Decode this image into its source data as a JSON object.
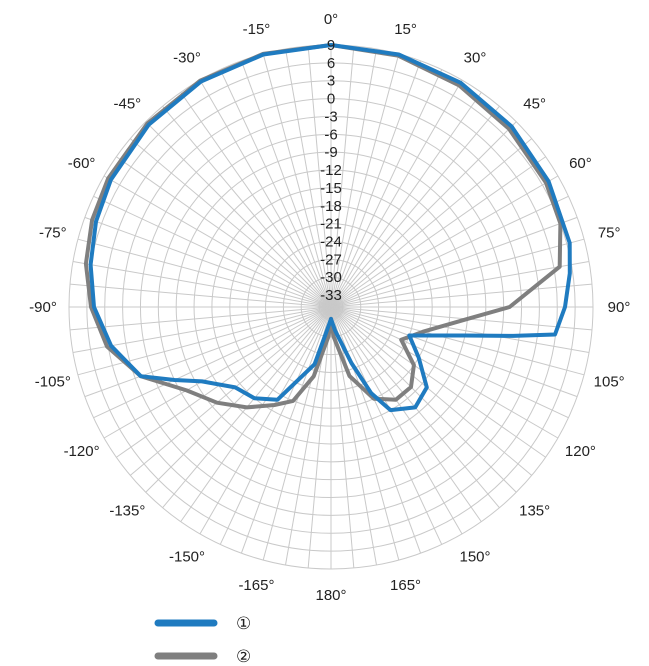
{
  "chart_data": {
    "type": "polar-line",
    "title": "",
    "angle_unit": "°",
    "angle_ticks": [
      "0°",
      "15°",
      "30°",
      "45°",
      "60°",
      "75°",
      "90°",
      "105°",
      "120°",
      "135°",
      "150°",
      "165°",
      "180°",
      "-165°",
      "-150°",
      "-135°",
      "-120°",
      "-105°",
      "-90°",
      "-75°",
      "-60°",
      "-45°",
      "-30°",
      "-15°"
    ],
    "angle_values": [
      0,
      15,
      30,
      45,
      60,
      75,
      90,
      105,
      120,
      135,
      150,
      165,
      180,
      -165,
      -150,
      -135,
      -120,
      -105,
      -90,
      -75,
      -60,
      -45,
      -30,
      -15
    ],
    "radial_ticks": [
      "9",
      "6",
      "3",
      "0",
      "-3",
      "-6",
      "-9",
      "-12",
      "-15",
      "-18",
      "-21",
      "-24",
      "-27",
      "-30",
      "-33"
    ],
    "radial_values": [
      9,
      6,
      3,
      0,
      -3,
      -6,
      -9,
      -12,
      -15,
      -18,
      -21,
      -24,
      -27,
      -30,
      -33
    ],
    "rlim": [
      -35,
      9
    ],
    "grid": true,
    "legend_position": "bottom-left",
    "series": [
      {
        "name": "①",
        "color": "#1f7bc0",
        "points": [
          [
            0,
            9
          ],
          [
            15,
            8.9
          ],
          [
            30,
            8.5
          ],
          [
            45,
            7.9
          ],
          [
            60,
            7.2
          ],
          [
            75,
            6.5
          ],
          [
            82,
            5.5
          ],
          [
            90,
            4.3
          ],
          [
            97,
            2.9
          ],
          [
            99,
            -4
          ],
          [
            102,
            -12
          ],
          [
            110,
            -21
          ],
          [
            120,
            -18
          ],
          [
            130,
            -14
          ],
          [
            140,
            -13
          ],
          [
            150,
            -15
          ],
          [
            155,
            -19
          ],
          [
            160,
            -25
          ],
          [
            170,
            -31
          ],
          [
            180,
            -33
          ],
          [
            -170,
            -31
          ],
          [
            -164,
            -25
          ],
          [
            -150,
            -17
          ],
          [
            -140,
            -15
          ],
          [
            -130,
            -14
          ],
          [
            -120,
            -10
          ],
          [
            -115,
            -6
          ],
          [
            -110,
            -1
          ],
          [
            -100,
            2.5
          ],
          [
            -90,
            4.8
          ],
          [
            -80,
            6.0
          ],
          [
            -70,
            7.0
          ],
          [
            -60,
            7.7
          ],
          [
            -45,
            8.3
          ],
          [
            -30,
            8.7
          ],
          [
            -15,
            8.9
          ],
          [
            0,
            9
          ]
        ]
      },
      {
        "name": "②",
        "color": "#7f7f7f",
        "points": [
          [
            0,
            9
          ],
          [
            15,
            8.7
          ],
          [
            30,
            8.0
          ],
          [
            45,
            7.3
          ],
          [
            60,
            6.7
          ],
          [
            70,
            6.0
          ],
          [
            80,
            4.0
          ],
          [
            90,
            -5
          ],
          [
            95,
            -12
          ],
          [
            105,
            -19
          ],
          [
            115,
            -22
          ],
          [
            125,
            -18
          ],
          [
            135,
            -16
          ],
          [
            145,
            -16
          ],
          [
            155,
            -18
          ],
          [
            165,
            -23
          ],
          [
            175,
            -30
          ],
          [
            180,
            -33
          ],
          [
            -175,
            -30
          ],
          [
            -166,
            -23
          ],
          [
            -158,
            -18
          ],
          [
            -150,
            -16
          ],
          [
            -140,
            -13
          ],
          [
            -130,
            -10
          ],
          [
            -120,
            -7
          ],
          [
            -110,
            -1
          ],
          [
            -100,
            3.2
          ],
          [
            -90,
            5.3
          ],
          [
            -80,
            6.8
          ],
          [
            -70,
            7.7
          ],
          [
            -60,
            8.2
          ],
          [
            -45,
            8.6
          ],
          [
            -30,
            8.9
          ],
          [
            -15,
            9.0
          ],
          [
            0,
            9
          ]
        ]
      }
    ]
  }
}
